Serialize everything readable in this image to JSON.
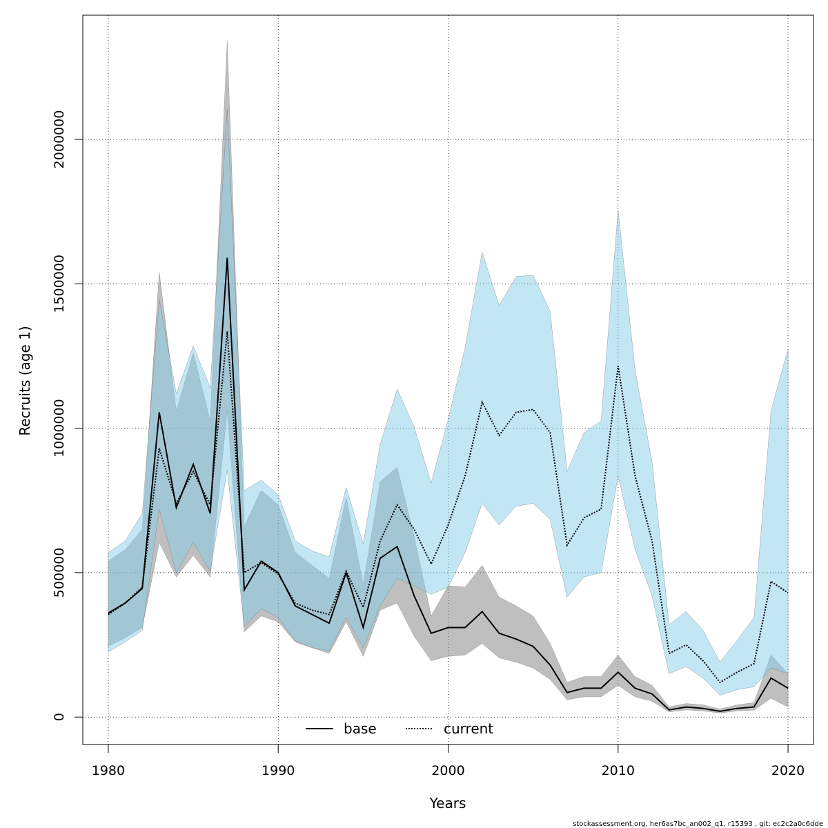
{
  "chart_data": {
    "type": "line",
    "xlabel": "Years",
    "ylabel": "Recruits (age 1)",
    "xlim": [
      1978.5,
      2021.5
    ],
    "ylim": [
      -95000,
      2430000
    ],
    "x_ticks": [
      1980,
      1990,
      2000,
      2010,
      2020
    ],
    "y_ticks": [
      0,
      500000,
      1000000,
      1500000,
      2000000
    ],
    "y_tick_labels": [
      "0",
      "500000",
      "1000000",
      "1500000",
      "2000000"
    ],
    "grid": true,
    "legend_position": "bottom",
    "x": [
      1980,
      1981,
      1982,
      1983,
      1984,
      1985,
      1986,
      1987,
      1988,
      1989,
      1990,
      1991,
      1992,
      1993,
      1994,
      1995,
      1996,
      1997,
      1998,
      1999,
      2000,
      2001,
      2002,
      2003,
      2004,
      2005,
      2006,
      2007,
      2008,
      2009,
      2010,
      2011,
      2012,
      2013,
      2014,
      2015,
      2016,
      2017,
      2018,
      2019,
      2020
    ],
    "series": [
      {
        "name": "base",
        "color": "#000000",
        "band_color": "#808080",
        "dash": "solid",
        "values": [
          360000,
          395000,
          445000,
          1055000,
          725000,
          875000,
          705000,
          1590000,
          440000,
          540000,
          500000,
          385000,
          355000,
          325000,
          500000,
          310000,
          550000,
          590000,
          420000,
          290000,
          310000,
          310000,
          365000,
          290000,
          270000,
          245000,
          180000,
          85000,
          100000,
          100000,
          155000,
          100000,
          80000,
          25000,
          35000,
          30000,
          20000,
          30000,
          35000,
          135000,
          100000
        ],
        "lower": [
          245000,
          275000,
          310000,
          605000,
          485000,
          560000,
          485000,
          1060000,
          295000,
          350000,
          330000,
          260000,
          240000,
          220000,
          330000,
          210000,
          370000,
          395000,
          280000,
          195000,
          210000,
          215000,
          255000,
          205000,
          190000,
          170000,
          130000,
          60000,
          70000,
          70000,
          110000,
          70000,
          55000,
          18000,
          25000,
          21000,
          14000,
          21000,
          24000,
          65000,
          35000
        ],
        "upper": [
          540000,
          580000,
          650000,
          1540000,
          1060000,
          1260000,
          1025000,
          2340000,
          660000,
          785000,
          735000,
          570000,
          525000,
          480000,
          760000,
          460000,
          815000,
          865000,
          625000,
          350000,
          455000,
          450000,
          525000,
          415000,
          385000,
          350000,
          255000,
          120000,
          140000,
          140000,
          215000,
          140000,
          110000,
          35000,
          47000,
          42000,
          28000,
          42000,
          50000,
          215000,
          150000
        ]
      },
      {
        "name": "current",
        "color": "#000000",
        "band_color": "#87ceeb",
        "dash": "dotted",
        "values": [
          355000,
          395000,
          450000,
          930000,
          740000,
          850000,
          735000,
          1335000,
          500000,
          535000,
          495000,
          395000,
          370000,
          355000,
          505000,
          380000,
          610000,
          735000,
          650000,
          530000,
          665000,
          835000,
          1090000,
          975000,
          1055000,
          1065000,
          985000,
          595000,
          690000,
          720000,
          1215000,
          835000,
          610000,
          220000,
          250000,
          195000,
          120000,
          155000,
          185000,
          470000,
          430000
        ],
        "lower": [
          225000,
          260000,
          300000,
          720000,
          500000,
          605000,
          505000,
          855000,
          315000,
          375000,
          345000,
          265000,
          240000,
          230000,
          345000,
          240000,
          385000,
          480000,
          455000,
          425000,
          450000,
          570000,
          740000,
          665000,
          730000,
          740000,
          685000,
          415000,
          485000,
          500000,
          835000,
          580000,
          420000,
          150000,
          175000,
          135000,
          75000,
          95000,
          105000,
          170000,
          150000
        ],
        "upper": [
          570000,
          610000,
          705000,
          1445000,
          1120000,
          1285000,
          1140000,
          2105000,
          785000,
          820000,
          770000,
          610000,
          575000,
          555000,
          795000,
          600000,
          945000,
          1135000,
          1005000,
          810000,
          1030000,
          1280000,
          1610000,
          1425000,
          1525000,
          1530000,
          1405000,
          850000,
          985000,
          1025000,
          1755000,
          1200000,
          885000,
          320000,
          365000,
          300000,
          190000,
          265000,
          345000,
          1060000,
          1275000
        ]
      }
    ]
  },
  "footer": "stockassessment.org, her6as7bc_an002_q1, r15393 , git: ec2c2a0c6dde"
}
